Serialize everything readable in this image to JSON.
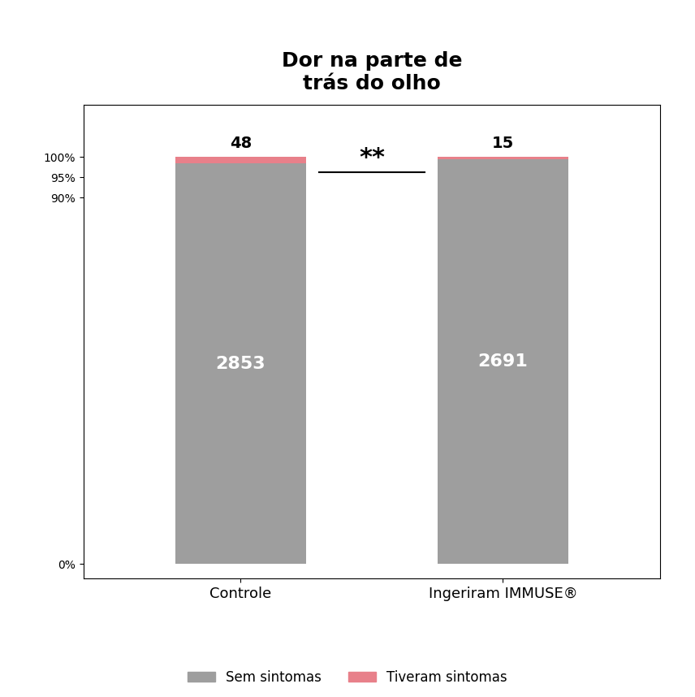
{
  "chart_data": {
    "type": "bar",
    "stacked": true,
    "title": "Dor na parte de\ntrás do olho",
    "categories": [
      "Controle",
      "Ingeriram IMMUSE®"
    ],
    "series": [
      {
        "name": "Sem sintomas",
        "color": "#9e9e9e",
        "values": [
          98.34,
          99.45
        ],
        "counts": [
          2853,
          2691
        ]
      },
      {
        "name": "Tiveram sintomas",
        "color": "#e8808a",
        "values": [
          1.66,
          0.55
        ],
        "counts": [
          48,
          15
        ]
      }
    ],
    "ylim": [
      -3.5714285714285716,
      112.85714285714286
    ],
    "yticks": [
      {
        "value": 0,
        "label": "0%"
      },
      {
        "value": 90,
        "label": "90%"
      },
      {
        "value": 95,
        "label": "95%"
      },
      {
        "value": 100,
        "label": "100%"
      }
    ],
    "grid": false,
    "legend": "lower center",
    "annotations": [
      {
        "text": "**",
        "x": [
          0,
          1
        ],
        "y": 96.2
      }
    ]
  }
}
